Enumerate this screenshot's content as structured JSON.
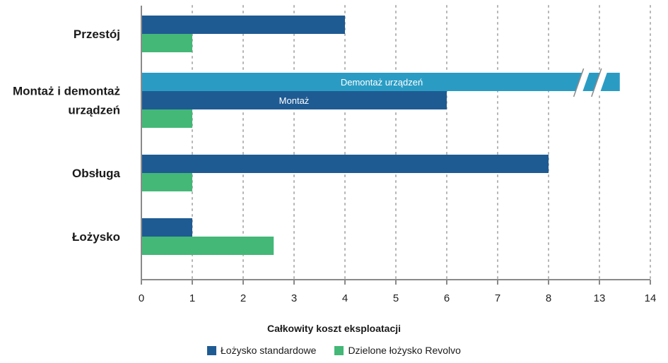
{
  "chart_data": {
    "type": "bar",
    "orientation": "horizontal",
    "categories": [
      "Przestój",
      "Montaż i demontaż urządzeń",
      "Obsługa",
      "Łożysko"
    ],
    "series": [
      {
        "name": "Łożysko standardowe",
        "color": "#1f5b93",
        "values": [
          4,
          6,
          8,
          1
        ],
        "segment_labels": [
          null,
          "Montaż",
          null,
          null
        ]
      },
      {
        "name": "Dzielone łożysko Revolvo",
        "color": "#43b877",
        "values": [
          1,
          1,
          1,
          2.6
        ]
      }
    ],
    "extra_bars": [
      {
        "category": "Montaż i demontaż urządzeń",
        "label": "Demontaż urządzeń",
        "value": 13.4,
        "color": "#2a9cc4",
        "axis_break": true
      }
    ],
    "x_ticks": [
      "0",
      "1",
      "2",
      "3",
      "4",
      "5",
      "6",
      "7",
      "8",
      "13",
      "14"
    ],
    "x_axis_break": "between 8 and 13",
    "xlabel": "Całkowity koszt eksploatacji",
    "grid": "vertical dotted",
    "legend_position": "bottom"
  }
}
